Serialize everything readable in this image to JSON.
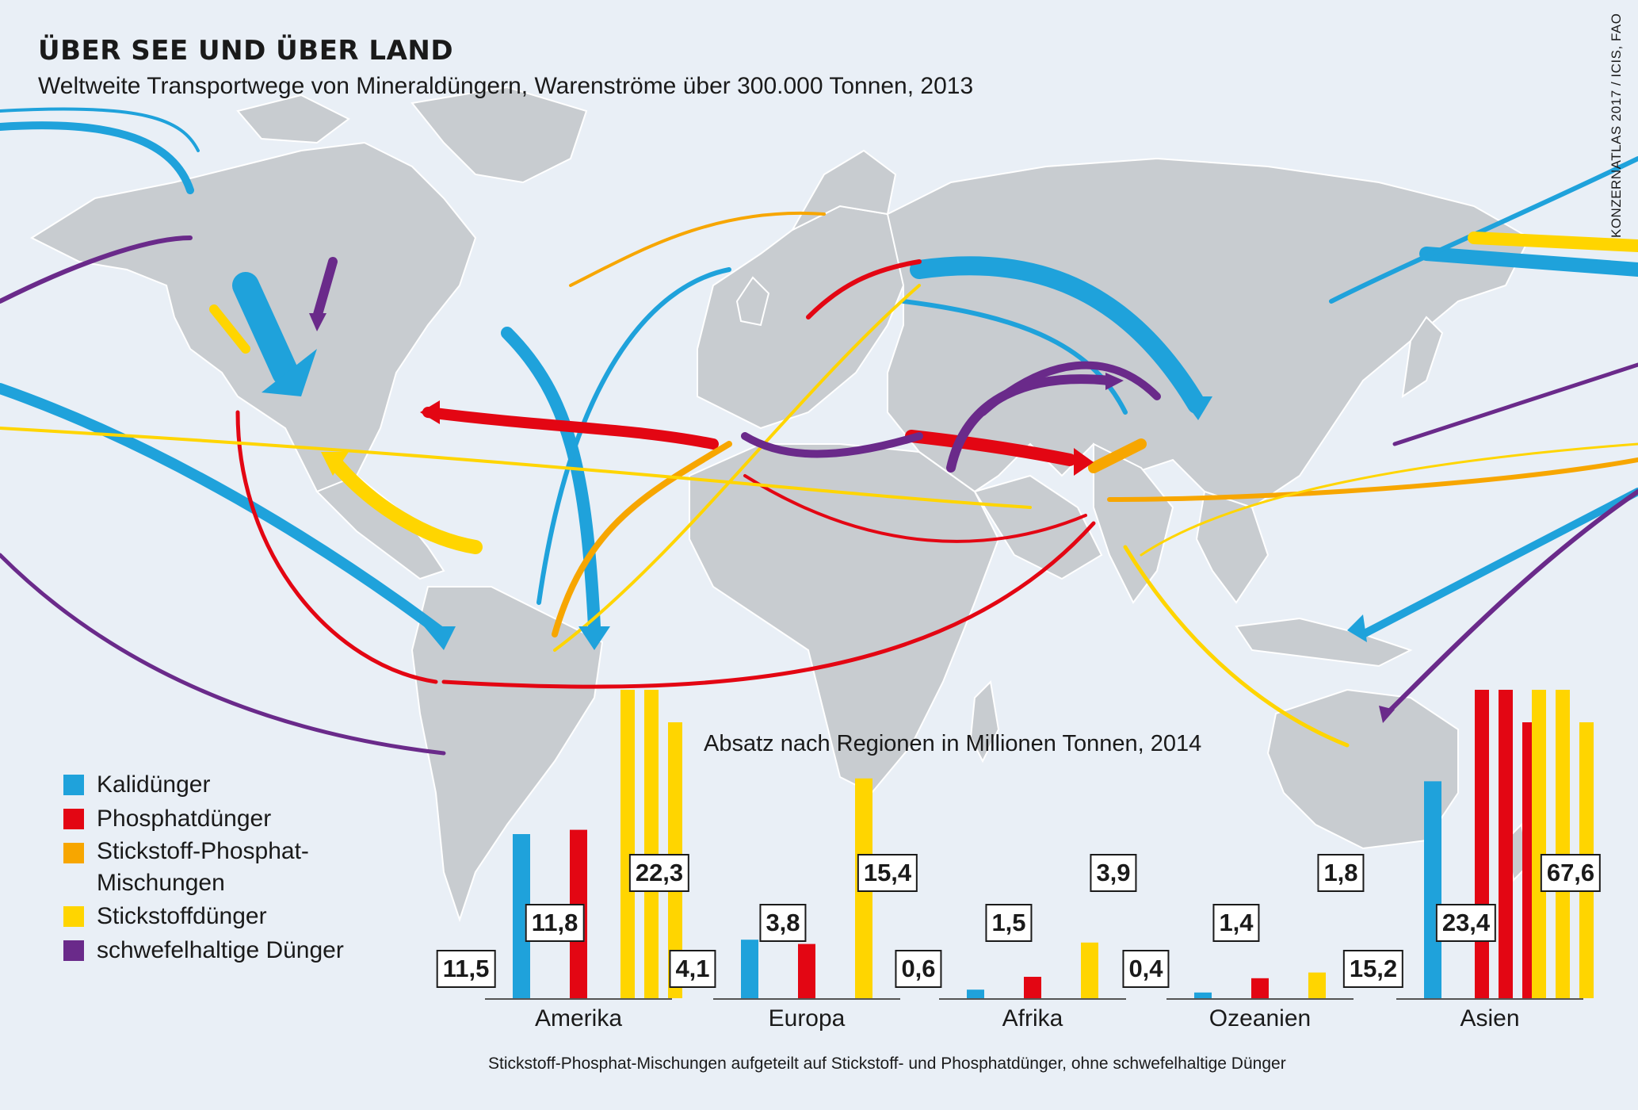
{
  "header": {
    "title": "ÜBER SEE UND ÜBER LAND",
    "subtitle": "Weltweite Transportwege von Mineraldüngern, Warenströme über 300.000 Tonnen, 2013",
    "source": "KONZERNATLAS 2017 / ICIS, FAO"
  },
  "colors": {
    "background": "#e9eff6",
    "land": "#c8ccd0",
    "kali": "#1fa2db",
    "phosphat": "#e30613",
    "np_mix": "#f7a600",
    "stickstoff": "#ffd500",
    "schwefel": "#6a2a8a"
  },
  "legend": {
    "items": [
      {
        "label": "Kalidünger",
        "color": "#1fa2db"
      },
      {
        "label": "Phosphatdünger",
        "color": "#e30613"
      },
      {
        "label": "Stickstoff-Phosphat-",
        "label2": "Mischungen",
        "color": "#f7a600"
      },
      {
        "label": "Stickstoffdünger",
        "color": "#ffd500"
      },
      {
        "label": "schwefelhaltige Dünger",
        "color": "#6a2a8a"
      }
    ]
  },
  "chart_data": {
    "type": "bar",
    "title": "Absatz nach Regionen in Millionen Tonnen, 2014",
    "note": "Stickstoff-Phosphat-Mischungen aufgeteilt auf Stickstoff- und Phosphatdünger, ohne schwefelhaltige Dünger",
    "categories": [
      "Amerika",
      "Europa",
      "Afrika",
      "Ozeanien",
      "Asien"
    ],
    "series": [
      {
        "name": "Kalidünger",
        "color": "#1fa2db",
        "values": [
          11.5,
          4.1,
          0.6,
          0.4,
          15.2
        ],
        "labels": [
          "11,5",
          "4,1",
          "0,6",
          "0,4",
          "15,2"
        ]
      },
      {
        "name": "Phosphatdünger",
        "color": "#e30613",
        "values": [
          11.8,
          3.8,
          1.5,
          1.4,
          23.4
        ],
        "labels": [
          "11,8",
          "3,8",
          "1,5",
          "1,4",
          "23,4"
        ]
      },
      {
        "name": "Stickstoffdünger",
        "color": "#ffd500",
        "values": [
          22.3,
          15.4,
          3.9,
          1.8,
          67.6
        ],
        "labels": [
          "22,3",
          "15,4",
          "3,9",
          "1,8",
          "67,6"
        ]
      }
    ],
    "axis_break_note": "Asien Stickstoffdünger bar is split into three segments (broken bar)"
  }
}
